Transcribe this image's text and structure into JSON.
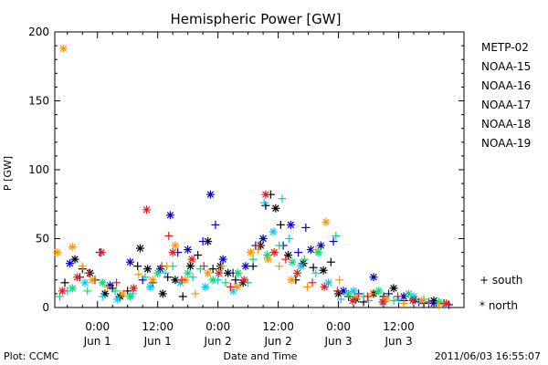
{
  "footer": {
    "plot_credit": "Plot: CCMC",
    "timestamp": "2011/06/03 16:55:07"
  },
  "chart_data": {
    "type": "scatter",
    "title": "Hemispheric Power [GW]",
    "xlabel": "Date and Time",
    "ylabel": "P [GW]",
    "ylim": [
      0,
      200
    ],
    "yticks": [
      0,
      50,
      100,
      150,
      200
    ],
    "x_unit": "hours from 2011-06-01 00:00 UT",
    "xlim": [
      -8.5,
      73
    ],
    "xticks": [
      {
        "x": 0,
        "time": "0:00",
        "date": "Jun 1"
      },
      {
        "x": 12,
        "time": "12:00",
        "date": "Jun 1"
      },
      {
        "x": 24,
        "time": "0:00",
        "date": "Jun 2"
      },
      {
        "x": 36,
        "time": "12:00",
        "date": "Jun 2"
      },
      {
        "x": 48,
        "time": "0:00",
        "date": "Jun 3"
      },
      {
        "x": 60,
        "time": "12:00",
        "date": "Jun 3"
      }
    ],
    "legend_position": "right",
    "marker_legend": [
      {
        "marker": "plus",
        "label": "+ south"
      },
      {
        "marker": "asterisk",
        "label": "* north"
      }
    ],
    "series": [
      {
        "name": "METP-02",
        "color": "#000000",
        "points": [
          [
            -6.5,
            18,
            "plus"
          ],
          [
            -4.5,
            35,
            "asterisk"
          ],
          [
            -3,
            28,
            "plus"
          ],
          [
            -1.5,
            25,
            "asterisk"
          ],
          [
            -0.5,
            20,
            "plus"
          ],
          [
            1.5,
            10,
            "asterisk"
          ],
          [
            3,
            14,
            "plus"
          ],
          [
            4.5,
            8,
            "asterisk"
          ],
          [
            6,
            12,
            "plus"
          ],
          [
            8,
            30,
            "plus"
          ],
          [
            8.5,
            43,
            "asterisk"
          ],
          [
            10,
            28,
            "asterisk"
          ],
          [
            11,
            18,
            "plus"
          ],
          [
            13,
            10,
            "asterisk"
          ],
          [
            14,
            22,
            "plus"
          ],
          [
            15.5,
            20,
            "asterisk"
          ],
          [
            17,
            8,
            "plus"
          ],
          [
            18.5,
            30,
            "asterisk"
          ],
          [
            20,
            38,
            "plus"
          ],
          [
            22,
            48,
            "asterisk"
          ],
          [
            23,
            28,
            "plus"
          ],
          [
            24.5,
            30,
            "asterisk"
          ],
          [
            26,
            25,
            "asterisk"
          ],
          [
            27.5,
            20,
            "plus"
          ],
          [
            29,
            18,
            "asterisk"
          ],
          [
            31,
            30,
            "plus"
          ],
          [
            32.5,
            45,
            "asterisk"
          ],
          [
            33.5,
            74,
            "plus"
          ],
          [
            34.5,
            82,
            "plus"
          ],
          [
            35.5,
            72,
            "asterisk"
          ],
          [
            36.5,
            60,
            "plus"
          ],
          [
            38,
            38,
            "asterisk"
          ],
          [
            39.5,
            20,
            "plus"
          ],
          [
            41,
            32,
            "asterisk"
          ],
          [
            43,
            29,
            "plus"
          ],
          [
            45,
            27,
            "asterisk"
          ],
          [
            46.5,
            33,
            "plus"
          ],
          [
            48,
            10,
            "asterisk"
          ],
          [
            50,
            8,
            "plus"
          ],
          [
            51.5,
            6,
            "asterisk"
          ],
          [
            53,
            4,
            "plus"
          ],
          [
            55,
            10,
            "asterisk"
          ],
          [
            57,
            8,
            "plus"
          ],
          [
            59,
            14,
            "asterisk"
          ],
          [
            61,
            5,
            "plus"
          ],
          [
            63,
            6,
            "asterisk"
          ],
          [
            65,
            3,
            "plus"
          ],
          [
            67,
            5,
            "asterisk"
          ],
          [
            69,
            3,
            "plus"
          ]
        ]
      },
      {
        "name": "NOAA-15",
        "color": "#0000c8",
        "points": [
          [
            -5.5,
            32,
            "asterisk"
          ],
          [
            -3.5,
            22,
            "plus"
          ],
          [
            0.5,
            40,
            "plus"
          ],
          [
            2.5,
            16,
            "asterisk"
          ],
          [
            6.5,
            33,
            "asterisk"
          ],
          [
            9,
            20,
            "plus"
          ],
          [
            12.5,
            28,
            "asterisk"
          ],
          [
            14.5,
            67,
            "asterisk"
          ],
          [
            16,
            40,
            "plus"
          ],
          [
            18,
            42,
            "asterisk"
          ],
          [
            21,
            48,
            "plus"
          ],
          [
            22.5,
            82,
            "asterisk"
          ],
          [
            23.5,
            60,
            "plus"
          ],
          [
            25,
            35,
            "asterisk"
          ],
          [
            27,
            25,
            "plus"
          ],
          [
            29.5,
            30,
            "asterisk"
          ],
          [
            31.5,
            45,
            "plus"
          ],
          [
            33,
            50,
            "asterisk"
          ],
          [
            37,
            45,
            "plus"
          ],
          [
            38.5,
            60,
            "asterisk"
          ],
          [
            40,
            40,
            "plus"
          ],
          [
            41.5,
            58,
            "plus"
          ],
          [
            42.5,
            42,
            "asterisk"
          ],
          [
            44.5,
            45,
            "asterisk"
          ],
          [
            47,
            48,
            "plus"
          ],
          [
            49,
            12,
            "asterisk"
          ],
          [
            52,
            10,
            "plus"
          ],
          [
            55,
            22,
            "asterisk"
          ],
          [
            58,
            10,
            "plus"
          ],
          [
            61,
            8,
            "asterisk"
          ],
          [
            64,
            4,
            "plus"
          ],
          [
            67,
            3,
            "asterisk"
          ],
          [
            70,
            2,
            "plus"
          ]
        ]
      },
      {
        "name": "NOAA-16",
        "color": "#00c8ff",
        "points": [
          [
            -6,
            12,
            "plus"
          ],
          [
            -2.5,
            18,
            "asterisk"
          ],
          [
            1,
            8,
            "plus"
          ],
          [
            4,
            6,
            "asterisk"
          ],
          [
            7,
            10,
            "plus"
          ],
          [
            10.5,
            15,
            "asterisk"
          ],
          [
            13.5,
            25,
            "plus"
          ],
          [
            16.5,
            18,
            "asterisk"
          ],
          [
            19,
            22,
            "plus"
          ],
          [
            21.5,
            15,
            "asterisk"
          ],
          [
            24,
            20,
            "plus"
          ],
          [
            27,
            12,
            "asterisk"
          ],
          [
            30,
            18,
            "plus"
          ],
          [
            33.2,
            76,
            "plus"
          ],
          [
            35,
            55,
            "asterisk"
          ],
          [
            36.8,
            79,
            "plus"
          ],
          [
            38.2,
            50,
            "plus"
          ],
          [
            40.5,
            30,
            "asterisk"
          ],
          [
            43.5,
            25,
            "plus"
          ],
          [
            46,
            18,
            "asterisk"
          ],
          [
            48.5,
            6,
            "plus"
          ],
          [
            51,
            12,
            "asterisk"
          ],
          [
            54,
            5,
            "plus"
          ],
          [
            57,
            4,
            "asterisk"
          ],
          [
            60,
            6,
            "plus"
          ],
          [
            63,
            8,
            "asterisk"
          ],
          [
            66,
            4,
            "plus"
          ],
          [
            69,
            2,
            "asterisk"
          ]
        ]
      },
      {
        "name": "NOAA-17",
        "color": "#00dc78",
        "points": [
          [
            -7.5,
            8,
            "plus"
          ],
          [
            -5,
            14,
            "asterisk"
          ],
          [
            -2,
            12,
            "plus"
          ],
          [
            1,
            18,
            "asterisk"
          ],
          [
            3.5,
            12,
            "plus"
          ],
          [
            6.5,
            8,
            "asterisk"
          ],
          [
            9.5,
            22,
            "plus"
          ],
          [
            12,
            25,
            "asterisk"
          ],
          [
            15,
            30,
            "plus"
          ],
          [
            18,
            25,
            "asterisk"
          ],
          [
            20.5,
            28,
            "plus"
          ],
          [
            23,
            20,
            "asterisk"
          ],
          [
            25.5,
            18,
            "plus"
          ],
          [
            28,
            25,
            "asterisk"
          ],
          [
            31,
            35,
            "plus"
          ],
          [
            33.8,
            38,
            "asterisk"
          ],
          [
            36.2,
            45,
            "plus"
          ],
          [
            38.8,
            33,
            "asterisk"
          ],
          [
            41.2,
            35,
            "plus"
          ],
          [
            44,
            40,
            "asterisk"
          ],
          [
            47.5,
            52,
            "plus"
          ],
          [
            50,
            10,
            "asterisk"
          ],
          [
            53,
            8,
            "plus"
          ],
          [
            56,
            12,
            "asterisk"
          ],
          [
            59,
            5,
            "plus"
          ],
          [
            62,
            10,
            "asterisk"
          ],
          [
            65,
            6,
            "plus"
          ],
          [
            68,
            4,
            "asterisk"
          ]
        ]
      },
      {
        "name": "NOAA-18",
        "color": "#ff9600",
        "points": [
          [
            -8,
            40,
            "asterisk"
          ],
          [
            -6.8,
            188,
            "asterisk"
          ],
          [
            -5,
            44,
            "asterisk"
          ],
          [
            -3,
            30,
            "plus"
          ],
          [
            -1,
            20,
            "asterisk"
          ],
          [
            2,
            15,
            "plus"
          ],
          [
            5,
            10,
            "asterisk"
          ],
          [
            8.2,
            24,
            "plus"
          ],
          [
            11,
            20,
            "asterisk"
          ],
          [
            13.8,
            30,
            "plus"
          ],
          [
            15.5,
            45,
            "asterisk"
          ],
          [
            17.5,
            20,
            "asterisk"
          ],
          [
            19.5,
            10,
            "plus"
          ],
          [
            22,
            25,
            "asterisk"
          ],
          [
            24.8,
            30,
            "plus"
          ],
          [
            27.8,
            15,
            "asterisk"
          ],
          [
            30.5,
            40,
            "asterisk"
          ],
          [
            32,
            42,
            "plus"
          ],
          [
            34,
            35,
            "asterisk"
          ],
          [
            36.2,
            30,
            "plus"
          ],
          [
            38.6,
            20,
            "asterisk"
          ],
          [
            41.8,
            15,
            "plus"
          ],
          [
            43.5,
            42,
            "plus"
          ],
          [
            45.5,
            62,
            "asterisk"
          ],
          [
            48.2,
            20,
            "plus"
          ],
          [
            51.5,
            8,
            "asterisk"
          ],
          [
            54.5,
            10,
            "plus"
          ],
          [
            57.5,
            6,
            "asterisk"
          ],
          [
            61,
            3,
            "plus"
          ],
          [
            64.5,
            5,
            "asterisk"
          ],
          [
            68,
            2,
            "plus"
          ]
        ]
      },
      {
        "name": "NOAA-19",
        "color": "#e11e1e",
        "points": [
          [
            -7,
            12,
            "asterisk"
          ],
          [
            -4,
            22,
            "asterisk"
          ],
          [
            -1.8,
            25,
            "plus"
          ],
          [
            0.8,
            40,
            "asterisk"
          ],
          [
            3.8,
            18,
            "plus"
          ],
          [
            7.2,
            14,
            "asterisk"
          ],
          [
            9.8,
            71,
            "asterisk"
          ],
          [
            12.8,
            30,
            "plus"
          ],
          [
            14.2,
            52,
            "plus"
          ],
          [
            15,
            40,
            "asterisk"
          ],
          [
            16.8,
            20,
            "plus"
          ],
          [
            18.8,
            35,
            "asterisk"
          ],
          [
            21.2,
            30,
            "plus"
          ],
          [
            24.2,
            25,
            "asterisk"
          ],
          [
            26.5,
            15,
            "plus"
          ],
          [
            29.2,
            20,
            "asterisk"
          ],
          [
            32.2,
            45,
            "plus"
          ],
          [
            33.5,
            82,
            "asterisk"
          ],
          [
            35.2,
            40,
            "asterisk"
          ],
          [
            37.5,
            35,
            "plus"
          ],
          [
            39.8,
            25,
            "asterisk"
          ],
          [
            42.8,
            18,
            "plus"
          ],
          [
            45.2,
            15,
            "asterisk"
          ],
          [
            47.8,
            12,
            "plus"
          ],
          [
            50.8,
            5,
            "asterisk"
          ],
          [
            53.8,
            8,
            "plus"
          ],
          [
            56.8,
            4,
            "asterisk"
          ],
          [
            59.8,
            8,
            "plus"
          ],
          [
            62.8,
            5,
            "asterisk"
          ],
          [
            66,
            4,
            "plus"
          ],
          [
            69.5,
            3,
            "asterisk"
          ]
        ]
      }
    ]
  }
}
